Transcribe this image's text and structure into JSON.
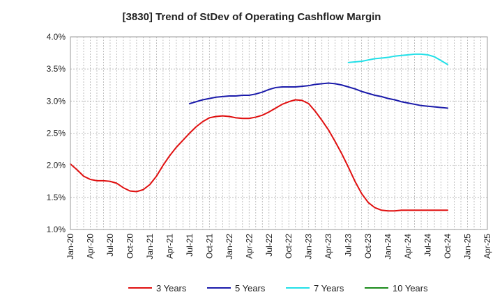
{
  "chart_data": {
    "type": "line",
    "title": "[3830]  Trend of StDev of Operating Cashflow Margin",
    "xlabel": "",
    "ylabel": "",
    "x_ticks": [
      "Jan-20",
      "Apr-20",
      "Jul-20",
      "Oct-20",
      "Jan-21",
      "Apr-21",
      "Jul-21",
      "Oct-21",
      "Jan-22",
      "Apr-22",
      "Jul-22",
      "Oct-22",
      "Jan-23",
      "Apr-23",
      "Jul-23",
      "Oct-23",
      "Jan-24",
      "Apr-24",
      "Jul-24",
      "Oct-24",
      "Jan-25",
      "Apr-25"
    ],
    "x_range": [
      "2020-01",
      "2025-04"
    ],
    "y_ticks": [
      "1.0%",
      "1.5%",
      "2.0%",
      "2.5%",
      "3.0%",
      "3.5%",
      "4.0%"
    ],
    "ylim": [
      1.0,
      4.0
    ],
    "y_unit": "%",
    "grid": true,
    "legend_position": "bottom",
    "series": [
      {
        "name": "3 Years",
        "color": "#e01010",
        "points": [
          [
            "2020-01",
            2.02
          ],
          [
            "2020-02",
            1.93
          ],
          [
            "2020-03",
            1.83
          ],
          [
            "2020-04",
            1.78
          ],
          [
            "2020-05",
            1.76
          ],
          [
            "2020-06",
            1.76
          ],
          [
            "2020-07",
            1.75
          ],
          [
            "2020-08",
            1.72
          ],
          [
            "2020-09",
            1.65
          ],
          [
            "2020-10",
            1.6
          ],
          [
            "2020-11",
            1.59
          ],
          [
            "2020-12",
            1.62
          ],
          [
            "2021-01",
            1.7
          ],
          [
            "2021-02",
            1.83
          ],
          [
            "2021-03",
            2.0
          ],
          [
            "2021-04",
            2.15
          ],
          [
            "2021-05",
            2.28
          ],
          [
            "2021-06",
            2.39
          ],
          [
            "2021-07",
            2.5
          ],
          [
            "2021-08",
            2.6
          ],
          [
            "2021-09",
            2.68
          ],
          [
            "2021-10",
            2.74
          ],
          [
            "2021-11",
            2.76
          ],
          [
            "2021-12",
            2.77
          ],
          [
            "2022-01",
            2.76
          ],
          [
            "2022-02",
            2.74
          ],
          [
            "2022-03",
            2.73
          ],
          [
            "2022-04",
            2.73
          ],
          [
            "2022-05",
            2.75
          ],
          [
            "2022-06",
            2.78
          ],
          [
            "2022-07",
            2.83
          ],
          [
            "2022-08",
            2.89
          ],
          [
            "2022-09",
            2.95
          ],
          [
            "2022-10",
            2.99
          ],
          [
            "2022-11",
            3.02
          ],
          [
            "2022-12",
            3.01
          ],
          [
            "2023-01",
            2.96
          ],
          [
            "2023-02",
            2.84
          ],
          [
            "2023-03",
            2.7
          ],
          [
            "2023-04",
            2.55
          ],
          [
            "2023-05",
            2.37
          ],
          [
            "2023-06",
            2.18
          ],
          [
            "2023-07",
            1.97
          ],
          [
            "2023-08",
            1.75
          ],
          [
            "2023-09",
            1.56
          ],
          [
            "2023-10",
            1.42
          ],
          [
            "2023-11",
            1.34
          ],
          [
            "2023-12",
            1.3
          ],
          [
            "2024-01",
            1.29
          ],
          [
            "2024-02",
            1.29
          ],
          [
            "2024-03",
            1.3
          ],
          [
            "2024-04",
            1.3
          ],
          [
            "2024-05",
            1.3
          ],
          [
            "2024-06",
            1.3
          ],
          [
            "2024-07",
            1.3
          ],
          [
            "2024-08",
            1.3
          ],
          [
            "2024-09",
            1.3
          ],
          [
            "2024-10",
            1.3
          ]
        ]
      },
      {
        "name": "5 Years",
        "color": "#1a1aaa",
        "points": [
          [
            "2021-07",
            2.96
          ],
          [
            "2021-08",
            2.99
          ],
          [
            "2021-09",
            3.02
          ],
          [
            "2021-10",
            3.04
          ],
          [
            "2021-11",
            3.06
          ],
          [
            "2021-12",
            3.07
          ],
          [
            "2022-01",
            3.08
          ],
          [
            "2022-02",
            3.08
          ],
          [
            "2022-03",
            3.09
          ],
          [
            "2022-04",
            3.09
          ],
          [
            "2022-05",
            3.11
          ],
          [
            "2022-06",
            3.14
          ],
          [
            "2022-07",
            3.18
          ],
          [
            "2022-08",
            3.21
          ],
          [
            "2022-09",
            3.22
          ],
          [
            "2022-10",
            3.22
          ],
          [
            "2022-11",
            3.22
          ],
          [
            "2022-12",
            3.23
          ],
          [
            "2023-01",
            3.24
          ],
          [
            "2023-02",
            3.26
          ],
          [
            "2023-03",
            3.27
          ],
          [
            "2023-04",
            3.28
          ],
          [
            "2023-05",
            3.27
          ],
          [
            "2023-06",
            3.25
          ],
          [
            "2023-07",
            3.22
          ],
          [
            "2023-08",
            3.19
          ],
          [
            "2023-09",
            3.15
          ],
          [
            "2023-10",
            3.12
          ],
          [
            "2023-11",
            3.09
          ],
          [
            "2023-12",
            3.07
          ],
          [
            "2024-01",
            3.04
          ],
          [
            "2024-02",
            3.02
          ],
          [
            "2024-03",
            2.99
          ],
          [
            "2024-04",
            2.97
          ],
          [
            "2024-05",
            2.95
          ],
          [
            "2024-06",
            2.93
          ],
          [
            "2024-07",
            2.92
          ],
          [
            "2024-08",
            2.91
          ],
          [
            "2024-09",
            2.9
          ],
          [
            "2024-10",
            2.89
          ]
        ]
      },
      {
        "name": "7 Years",
        "color": "#22e0e8",
        "points": [
          [
            "2023-07",
            3.6
          ],
          [
            "2023-08",
            3.61
          ],
          [
            "2023-09",
            3.62
          ],
          [
            "2023-10",
            3.64
          ],
          [
            "2023-11",
            3.66
          ],
          [
            "2023-12",
            3.67
          ],
          [
            "2024-01",
            3.68
          ],
          [
            "2024-02",
            3.7
          ],
          [
            "2024-03",
            3.71
          ],
          [
            "2024-04",
            3.72
          ],
          [
            "2024-05",
            3.73
          ],
          [
            "2024-06",
            3.73
          ],
          [
            "2024-07",
            3.72
          ],
          [
            "2024-08",
            3.69
          ],
          [
            "2024-09",
            3.63
          ],
          [
            "2024-10",
            3.57
          ]
        ]
      },
      {
        "name": "10 Years",
        "color": "#1a8a1a",
        "points": []
      }
    ]
  }
}
